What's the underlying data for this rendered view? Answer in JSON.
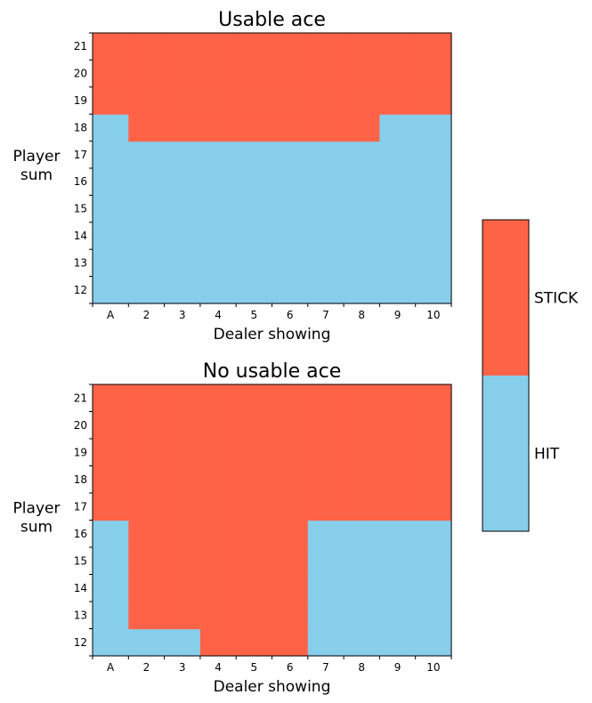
{
  "colors": {
    "hit": "#87CEEB",
    "stick": "#FF6347"
  },
  "legend": {
    "stick_label": "STICK",
    "hit_label": "HIT"
  },
  "chart_data": [
    {
      "type": "heatmap",
      "title": "Usable ace",
      "xlabel": "Dealer showing",
      "ylabel": "Player\nsum",
      "x_tick_labels": [
        "A",
        "2",
        "3",
        "4",
        "5",
        "6",
        "7",
        "8",
        "9",
        "10"
      ],
      "y_tick_labels": [
        "12",
        "13",
        "14",
        "15",
        "16",
        "17",
        "18",
        "19",
        "20",
        "21"
      ],
      "value_legend": {
        "0": "HIT",
        "1": "STICK"
      },
      "rows_player_sum_12_to_21": [
        [
          0,
          0,
          0,
          0,
          0,
          0,
          0,
          0,
          0,
          0
        ],
        [
          0,
          0,
          0,
          0,
          0,
          0,
          0,
          0,
          0,
          0
        ],
        [
          0,
          0,
          0,
          0,
          0,
          0,
          0,
          0,
          0,
          0
        ],
        [
          0,
          0,
          0,
          0,
          0,
          0,
          0,
          0,
          0,
          0
        ],
        [
          0,
          0,
          0,
          0,
          0,
          0,
          0,
          0,
          0,
          0
        ],
        [
          0,
          0,
          0,
          0,
          0,
          0,
          0,
          0,
          0,
          0
        ],
        [
          0,
          1,
          1,
          1,
          1,
          1,
          1,
          1,
          0,
          0
        ],
        [
          1,
          1,
          1,
          1,
          1,
          1,
          1,
          1,
          1,
          1
        ],
        [
          1,
          1,
          1,
          1,
          1,
          1,
          1,
          1,
          1,
          1
        ],
        [
          1,
          1,
          1,
          1,
          1,
          1,
          1,
          1,
          1,
          1
        ]
      ]
    },
    {
      "type": "heatmap",
      "title": "No usable ace",
      "xlabel": "Dealer showing",
      "ylabel": "Player\nsum",
      "x_tick_labels": [
        "A",
        "2",
        "3",
        "4",
        "5",
        "6",
        "7",
        "8",
        "9",
        "10"
      ],
      "y_tick_labels": [
        "12",
        "13",
        "14",
        "15",
        "16",
        "17",
        "18",
        "19",
        "20",
        "21"
      ],
      "value_legend": {
        "0": "HIT",
        "1": "STICK"
      },
      "rows_player_sum_12_to_21": [
        [
          0,
          0,
          0,
          1,
          1,
          1,
          0,
          0,
          0,
          0
        ],
        [
          0,
          1,
          1,
          1,
          1,
          1,
          0,
          0,
          0,
          0
        ],
        [
          0,
          1,
          1,
          1,
          1,
          1,
          0,
          0,
          0,
          0
        ],
        [
          0,
          1,
          1,
          1,
          1,
          1,
          0,
          0,
          0,
          0
        ],
        [
          0,
          1,
          1,
          1,
          1,
          1,
          0,
          0,
          0,
          0
        ],
        [
          1,
          1,
          1,
          1,
          1,
          1,
          1,
          1,
          1,
          1
        ],
        [
          1,
          1,
          1,
          1,
          1,
          1,
          1,
          1,
          1,
          1
        ],
        [
          1,
          1,
          1,
          1,
          1,
          1,
          1,
          1,
          1,
          1
        ],
        [
          1,
          1,
          1,
          1,
          1,
          1,
          1,
          1,
          1,
          1
        ],
        [
          1,
          1,
          1,
          1,
          1,
          1,
          1,
          1,
          1,
          1
        ]
      ]
    }
  ]
}
